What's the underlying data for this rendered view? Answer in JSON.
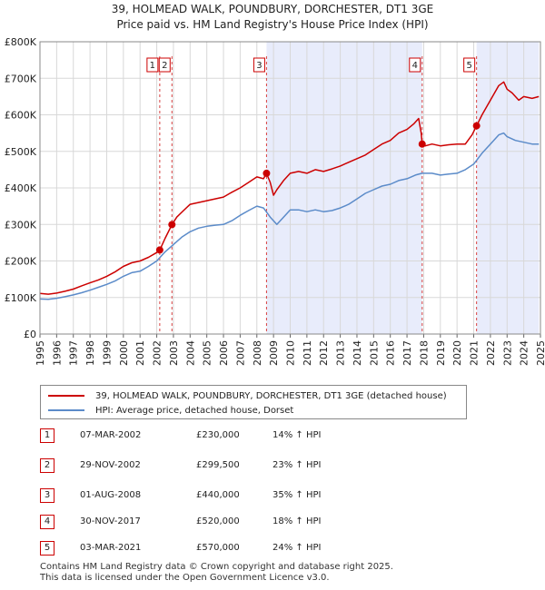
{
  "chart_title_line1": "39, HOLMEAD WALK, POUNDBURY, DORCHESTER, DT1 3GE",
  "chart_title_line2": "Price paid vs. HM Land Registry's House Price Index (HPI)",
  "colors": {
    "property": "#cc0000",
    "hpi": "#5b8bc9",
    "shade": "#e8ecfb",
    "grid": "#d8d8d8"
  },
  "legend": {
    "property": "39, HOLMEAD WALK, POUNDBURY, DORCHESTER, DT1 3GE (detached house)",
    "hpi": "HPI: Average price, detached house, Dorset"
  },
  "transactions": [
    {
      "num": "1",
      "date": "07-MAR-2002",
      "price": "£230,000",
      "hpi": "14% ↑ HPI"
    },
    {
      "num": "2",
      "date": "29-NOV-2002",
      "price": "£299,500",
      "hpi": "23% ↑ HPI"
    },
    {
      "num": "3",
      "date": "01-AUG-2008",
      "price": "£440,000",
      "hpi": "35% ↑ HPI"
    },
    {
      "num": "4",
      "date": "30-NOV-2017",
      "price": "£520,000",
      "hpi": "18% ↑ HPI"
    },
    {
      "num": "5",
      "date": "03-MAR-2021",
      "price": "£570,000",
      "hpi": "24% ↑ HPI"
    }
  ],
  "footer_line1": "Contains HM Land Registry data © Crown copyright and database right 2025.",
  "footer_line2": "This data is licensed under the Open Government Licence v3.0.",
  "chart_data": {
    "type": "line",
    "title": "39, HOLMEAD WALK, POUNDBURY, DORCHESTER, DT1 3GE — Price paid vs. HM Land Registry's House Price Index (HPI)",
    "xlim": [
      1995,
      2025
    ],
    "ylim": [
      0,
      800000
    ],
    "y_ticks": [
      0,
      100000,
      200000,
      300000,
      400000,
      500000,
      600000,
      700000,
      800000
    ],
    "y_tick_labels": [
      "£0",
      "£100K",
      "£200K",
      "£300K",
      "£400K",
      "£500K",
      "£600K",
      "£700K",
      "£800K"
    ],
    "x_ticks": [
      1995,
      1996,
      1997,
      1998,
      1999,
      2000,
      2001,
      2002,
      2003,
      2004,
      2005,
      2006,
      2007,
      2008,
      2009,
      2010,
      2011,
      2012,
      2013,
      2014,
      2015,
      2016,
      2017,
      2018,
      2019,
      2020,
      2021,
      2022,
      2023,
      2024,
      2025
    ],
    "x_tick_labels": [
      "1995",
      "1996",
      "1997",
      "1998",
      "1999",
      "2000",
      "2001",
      "2002",
      "2003",
      "2004",
      "2005",
      "2006",
      "2007",
      "2008",
      "2009",
      "2010",
      "2011",
      "2012",
      "2013",
      "2014",
      "2015",
      "2016",
      "2017",
      "2018",
      "2019",
      "2020",
      "2021",
      "2022",
      "2023",
      "2024",
      "2025"
    ],
    "shaded_ranges": [
      [
        2008.58,
        2017.91
      ],
      [
        2021.17,
        2024.9
      ]
    ],
    "grid": true,
    "series": [
      {
        "name": "39, HOLMEAD WALK, POUNDBURY, DORCHESTER, DT1 3GE (detached house)",
        "x": [
          1995.0,
          1995.5,
          1996.0,
          1996.5,
          1997.0,
          1997.5,
          1998.0,
          1998.5,
          1999.0,
          1999.5,
          2000.0,
          2000.5,
          2001.0,
          2001.5,
          2002.0,
          2002.18,
          2002.5,
          2002.91,
          2003.2,
          2003.6,
          2004.0,
          2004.5,
          2005.0,
          2005.5,
          2006.0,
          2006.5,
          2007.0,
          2007.5,
          2008.0,
          2008.4,
          2008.58,
          2008.8,
          2009.0,
          2009.2,
          2009.6,
          2010.0,
          2010.5,
          2011.0,
          2011.5,
          2012.0,
          2012.5,
          2013.0,
          2013.5,
          2014.0,
          2014.5,
          2015.0,
          2015.5,
          2016.0,
          2016.5,
          2017.0,
          2017.4,
          2017.7,
          2017.85,
          2017.91,
          2018.1,
          2018.5,
          2019.0,
          2019.5,
          2020.0,
          2020.5,
          2020.9,
          2021.17,
          2021.5,
          2022.0,
          2022.5,
          2022.8,
          2023.0,
          2023.3,
          2023.7,
          2024.0,
          2024.5,
          2024.9
        ],
        "y": [
          111000,
          109000,
          112000,
          117000,
          123000,
          132000,
          140000,
          148000,
          158000,
          170000,
          185000,
          195000,
          200000,
          210000,
          223000,
          230000,
          262000,
          299500,
          320000,
          338000,
          355000,
          360000,
          365000,
          370000,
          375000,
          388000,
          400000,
          415000,
          430000,
          425000,
          440000,
          415000,
          380000,
          395000,
          420000,
          440000,
          445000,
          440000,
          450000,
          445000,
          452000,
          460000,
          470000,
          480000,
          490000,
          505000,
          520000,
          530000,
          550000,
          560000,
          575000,
          590000,
          550000,
          520000,
          515000,
          520000,
          515000,
          518000,
          520000,
          520000,
          545000,
          570000,
          600000,
          640000,
          680000,
          690000,
          670000,
          660000,
          640000,
          650000,
          645000,
          650000
        ]
      },
      {
        "name": "HPI: Average price, detached house, Dorset",
        "x": [
          1995.0,
          1995.5,
          1996.0,
          1996.5,
          1997.0,
          1997.5,
          1998.0,
          1998.5,
          1999.0,
          1999.5,
          2000.0,
          2000.5,
          2001.0,
          2001.5,
          2002.0,
          2002.5,
          2003.0,
          2003.5,
          2004.0,
          2004.5,
          2005.0,
          2005.5,
          2006.0,
          2006.5,
          2007.0,
          2007.5,
          2008.0,
          2008.4,
          2008.8,
          2009.2,
          2009.6,
          2010.0,
          2010.5,
          2011.0,
          2011.5,
          2012.0,
          2012.5,
          2013.0,
          2013.5,
          2014.0,
          2014.5,
          2015.0,
          2015.5,
          2016.0,
          2016.5,
          2017.0,
          2017.5,
          2017.9,
          2018.5,
          2019.0,
          2019.5,
          2020.0,
          2020.5,
          2021.0,
          2021.5,
          2022.0,
          2022.5,
          2022.8,
          2023.0,
          2023.5,
          2024.0,
          2024.5,
          2024.9
        ],
        "y": [
          96000,
          95000,
          98000,
          102000,
          107000,
          113000,
          120000,
          128000,
          136000,
          145000,
          158000,
          168000,
          172000,
          185000,
          200000,
          225000,
          245000,
          265000,
          280000,
          290000,
          295000,
          298000,
          300000,
          310000,
          325000,
          338000,
          350000,
          345000,
          320000,
          300000,
          320000,
          340000,
          340000,
          335000,
          340000,
          335000,
          338000,
          345000,
          355000,
          370000,
          385000,
          395000,
          405000,
          410000,
          420000,
          425000,
          435000,
          440000,
          440000,
          435000,
          438000,
          440000,
          450000,
          465000,
          495000,
          520000,
          545000,
          550000,
          540000,
          530000,
          525000,
          520000,
          520000
        ]
      }
    ],
    "markers": [
      {
        "label": "1",
        "x": 2002.18,
        "y": 230000
      },
      {
        "label": "2",
        "x": 2002.91,
        "y": 299500
      },
      {
        "label": "3",
        "x": 2008.58,
        "y": 440000
      },
      {
        "label": "4",
        "x": 2017.91,
        "y": 520000
      },
      {
        "label": "5",
        "x": 2021.17,
        "y": 570000
      }
    ]
  }
}
